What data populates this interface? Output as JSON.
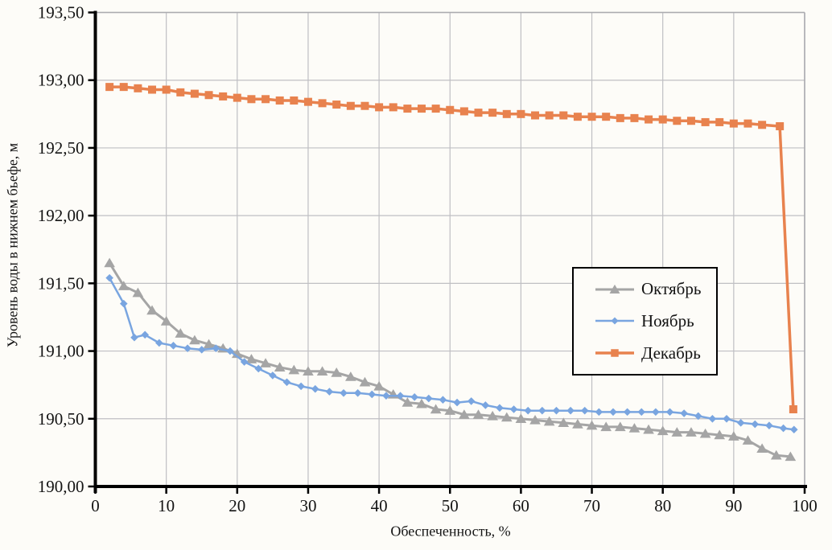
{
  "page": {
    "background": "#FDFCF8"
  },
  "chart_data": {
    "type": "line",
    "title": "",
    "xlabel": "Обеспеченность, %",
    "ylabel": "Уровень воды в нижнем бьефе, м",
    "xlim": [
      0,
      100
    ],
    "ylim": [
      190.0,
      193.5
    ],
    "x_ticks": [
      0,
      10,
      20,
      30,
      40,
      50,
      60,
      70,
      80,
      90,
      100
    ],
    "y_ticks": [
      190.0,
      190.5,
      191.0,
      191.5,
      192.0,
      192.5,
      193.0,
      193.5
    ],
    "y_tick_labels": [
      "190,00",
      "190,50",
      "191,00",
      "191,50",
      "192,00",
      "192,50",
      "193,00",
      "193,50"
    ],
    "grid": true,
    "legend_position": "inside-right",
    "colors": {
      "axis": "#000000",
      "grid": "#BFBFC3",
      "border": "#ABABAF",
      "text": "#141414"
    },
    "series": [
      {
        "name": "Октябрь",
        "color": "#A5A5A5",
        "marker": "triangle",
        "line_width": 3,
        "points": [
          [
            2,
            191.65
          ],
          [
            4,
            191.48
          ],
          [
            6,
            191.43
          ],
          [
            8,
            191.3
          ],
          [
            10,
            191.22
          ],
          [
            12,
            191.13
          ],
          [
            14,
            191.08
          ],
          [
            16,
            191.05
          ],
          [
            18,
            191.02
          ],
          [
            20,
            190.98
          ],
          [
            22,
            190.94
          ],
          [
            24,
            190.91
          ],
          [
            26,
            190.88
          ],
          [
            28,
            190.86
          ],
          [
            30,
            190.85
          ],
          [
            32,
            190.85
          ],
          [
            34,
            190.84
          ],
          [
            36,
            190.81
          ],
          [
            38,
            190.77
          ],
          [
            40,
            190.74
          ],
          [
            42,
            190.68
          ],
          [
            44,
            190.62
          ],
          [
            46,
            190.61
          ],
          [
            48,
            190.57
          ],
          [
            50,
            190.56
          ],
          [
            52,
            190.53
          ],
          [
            54,
            190.53
          ],
          [
            56,
            190.52
          ],
          [
            58,
            190.51
          ],
          [
            60,
            190.5
          ],
          [
            62,
            190.49
          ],
          [
            64,
            190.48
          ],
          [
            66,
            190.47
          ],
          [
            68,
            190.46
          ],
          [
            70,
            190.45
          ],
          [
            72,
            190.44
          ],
          [
            74,
            190.44
          ],
          [
            76,
            190.43
          ],
          [
            78,
            190.42
          ],
          [
            80,
            190.41
          ],
          [
            82,
            190.4
          ],
          [
            84,
            190.4
          ],
          [
            86,
            190.39
          ],
          [
            88,
            190.38
          ],
          [
            90,
            190.37
          ],
          [
            92,
            190.34
          ],
          [
            94,
            190.28
          ],
          [
            96,
            190.23
          ],
          [
            98,
            190.22
          ]
        ]
      },
      {
        "name": "Ноябрь",
        "color": "#79A5E0",
        "marker": "diamond",
        "line_width": 2.5,
        "points": [
          [
            2,
            191.54
          ],
          [
            4,
            191.35
          ],
          [
            5.5,
            191.1
          ],
          [
            7,
            191.12
          ],
          [
            9,
            191.06
          ],
          [
            11,
            191.04
          ],
          [
            13,
            191.02
          ],
          [
            15,
            191.01
          ],
          [
            17,
            191.02
          ],
          [
            19,
            191.0
          ],
          [
            21,
            190.92
          ],
          [
            23,
            190.87
          ],
          [
            25,
            190.82
          ],
          [
            27,
            190.77
          ],
          [
            29,
            190.74
          ],
          [
            31,
            190.72
          ],
          [
            33,
            190.7
          ],
          [
            35,
            190.69
          ],
          [
            37,
            190.69
          ],
          [
            39,
            190.68
          ],
          [
            41,
            190.67
          ],
          [
            43,
            190.67
          ],
          [
            45,
            190.66
          ],
          [
            47,
            190.65
          ],
          [
            49,
            190.64
          ],
          [
            51,
            190.62
          ],
          [
            53,
            190.63
          ],
          [
            55,
            190.6
          ],
          [
            57,
            190.58
          ],
          [
            59,
            190.57
          ],
          [
            61,
            190.56
          ],
          [
            63,
            190.56
          ],
          [
            65,
            190.56
          ],
          [
            67,
            190.56
          ],
          [
            69,
            190.56
          ],
          [
            71,
            190.55
          ],
          [
            73,
            190.55
          ],
          [
            75,
            190.55
          ],
          [
            77,
            190.55
          ],
          [
            79,
            190.55
          ],
          [
            81,
            190.55
          ],
          [
            83,
            190.54
          ],
          [
            85,
            190.52
          ],
          [
            87,
            190.5
          ],
          [
            89,
            190.5
          ],
          [
            91,
            190.47
          ],
          [
            93,
            190.46
          ],
          [
            95,
            190.45
          ],
          [
            97,
            190.43
          ],
          [
            98.5,
            190.42
          ]
        ]
      },
      {
        "name": "Декабрь",
        "color": "#E8824E",
        "marker": "square",
        "line_width": 3.5,
        "points": [
          [
            2,
            192.95
          ],
          [
            4,
            192.95
          ],
          [
            6,
            192.94
          ],
          [
            8,
            192.93
          ],
          [
            10,
            192.93
          ],
          [
            12,
            192.91
          ],
          [
            14,
            192.9
          ],
          [
            16,
            192.89
          ],
          [
            18,
            192.88
          ],
          [
            20,
            192.87
          ],
          [
            22,
            192.86
          ],
          [
            24,
            192.86
          ],
          [
            26,
            192.85
          ],
          [
            28,
            192.85
          ],
          [
            30,
            192.84
          ],
          [
            32,
            192.83
          ],
          [
            34,
            192.82
          ],
          [
            36,
            192.81
          ],
          [
            38,
            192.81
          ],
          [
            40,
            192.8
          ],
          [
            42,
            192.8
          ],
          [
            44,
            192.79
          ],
          [
            46,
            192.79
          ],
          [
            48,
            192.79
          ],
          [
            50,
            192.78
          ],
          [
            52,
            192.77
          ],
          [
            54,
            192.76
          ],
          [
            56,
            192.76
          ],
          [
            58,
            192.75
          ],
          [
            60,
            192.75
          ],
          [
            62,
            192.74
          ],
          [
            64,
            192.74
          ],
          [
            66,
            192.74
          ],
          [
            68,
            192.73
          ],
          [
            70,
            192.73
          ],
          [
            72,
            192.73
          ],
          [
            74,
            192.72
          ],
          [
            76,
            192.72
          ],
          [
            78,
            192.71
          ],
          [
            80,
            192.71
          ],
          [
            82,
            192.7
          ],
          [
            84,
            192.7
          ],
          [
            86,
            192.69
          ],
          [
            88,
            192.69
          ],
          [
            90,
            192.68
          ],
          [
            92,
            192.68
          ],
          [
            94,
            192.67
          ],
          [
            96.5,
            192.66
          ],
          [
            98.4,
            190.57
          ]
        ]
      }
    ]
  }
}
